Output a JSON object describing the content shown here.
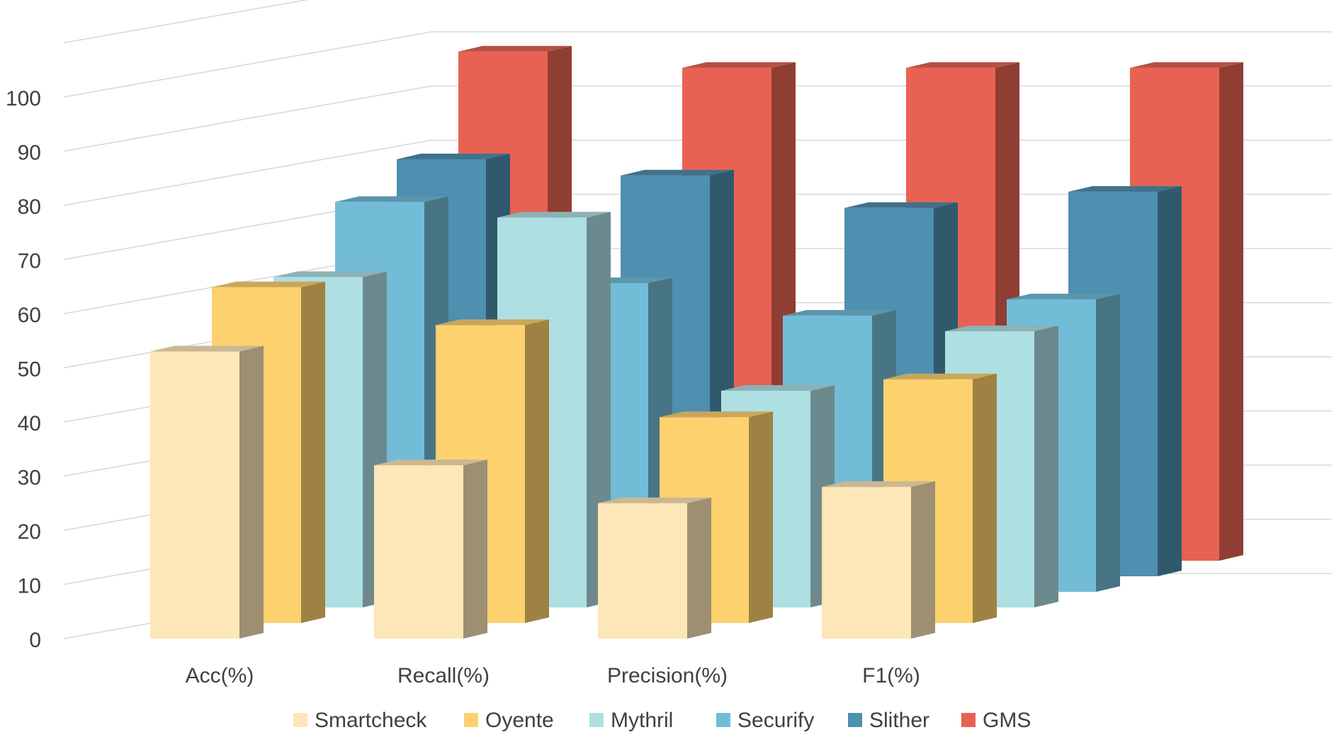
{
  "chart_data": {
    "type": "bar",
    "subtype": "3d-clustered-column",
    "title": "",
    "xlabel": "",
    "ylabel": "",
    "ylim": [
      0,
      100
    ],
    "yticks": [
      "0",
      "10",
      "20",
      "30",
      "40",
      "50",
      "60",
      "70",
      "80",
      "90",
      "100"
    ],
    "categories": [
      "Acc(%)",
      "Recall(%)",
      "Precision(%)",
      "F1(%)"
    ],
    "series": [
      {
        "name": "Smartcheck",
        "color": "#FDE6B8",
        "values": [
          53,
          32,
          25,
          28
        ]
      },
      {
        "name": "Oyente",
        "color": "#FDD16E",
        "values": [
          62,
          55,
          38,
          45
        ]
      },
      {
        "name": "Mythril",
        "color": "#AEDFE3",
        "values": [
          61,
          72,
          40,
          51
        ]
      },
      {
        "name": "Securify",
        "color": "#73BCD8",
        "values": [
          72,
          57,
          51,
          54
        ]
      },
      {
        "name": "Slither",
        "color": "#4F8FB0",
        "values": [
          77,
          74,
          68,
          71
        ]
      },
      {
        "name": "GMS",
        "color": "#E86253",
        "values": [
          94,
          91,
          91,
          91
        ]
      }
    ],
    "grid": true,
    "legend_position": "bottom"
  }
}
